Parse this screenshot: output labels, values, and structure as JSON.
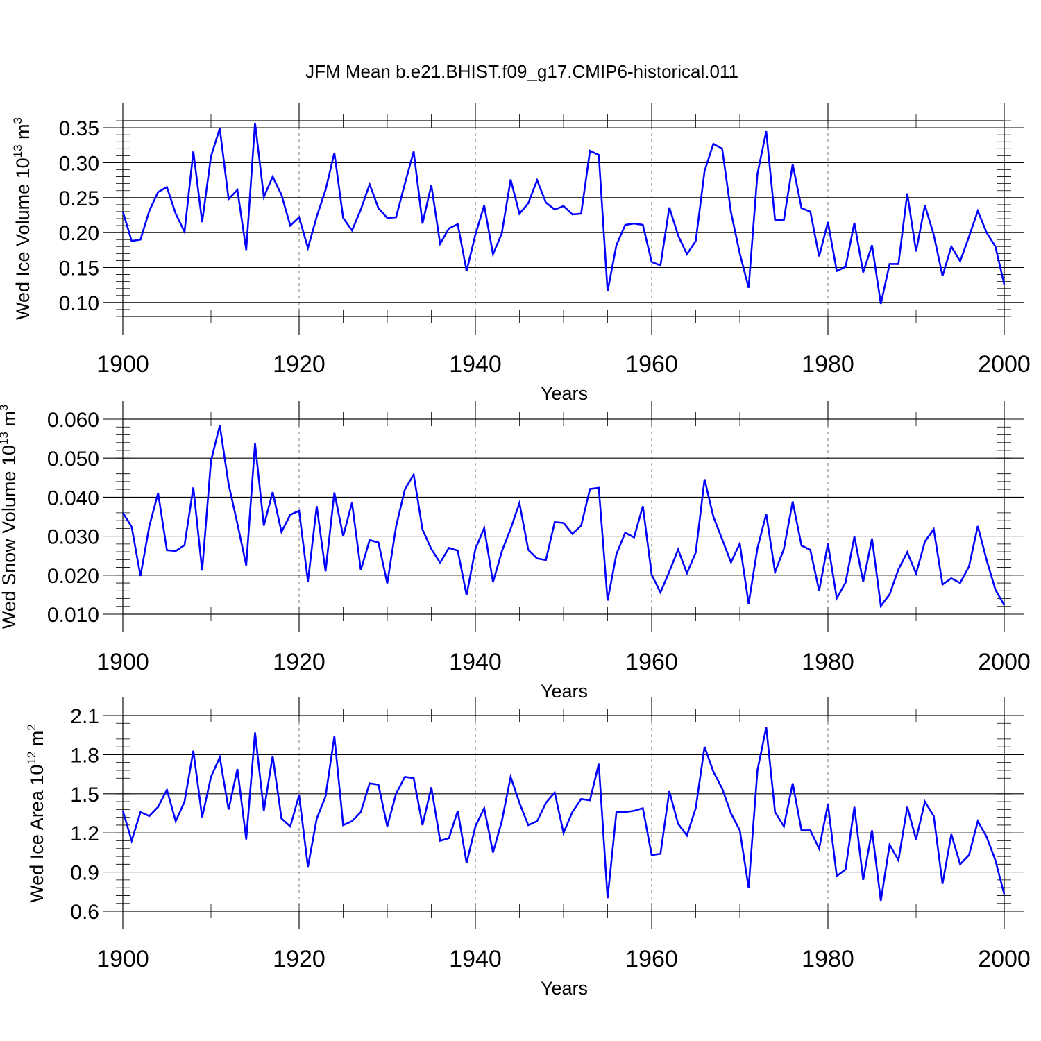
{
  "title": "JFM Mean b.e21.BHIST.f09_g17.CMIP6-historical.011",
  "line_color": "#0000ff",
  "chart_data": [
    {
      "type": "line",
      "ylabel": "Wed Ice Volume 10",
      "ylabel_exp": "13",
      "ylabel_unit": " m",
      "ylabel_unit_exp": "3",
      "xlabel": "Years",
      "xlim": [
        1900,
        2000
      ],
      "ylim": [
        0.08,
        0.36
      ],
      "yticks": [
        0.1,
        0.15,
        0.2,
        0.25,
        0.3,
        0.35
      ],
      "ytick_labels": [
        "0.10",
        "0.15",
        "0.20",
        "0.25",
        "0.30",
        "0.35"
      ],
      "yminor_step": 0.01,
      "xticks": [
        1900,
        1920,
        1940,
        1960,
        1980,
        2000
      ],
      "xtick_labels": [
        "1900",
        "1920",
        "1940",
        "1960",
        "1980",
        "2000"
      ],
      "x_start": 1900,
      "series": [
        {
          "name": "Wed Ice Volume",
          "values": [
            0.23,
            0.188,
            0.19,
            0.231,
            0.258,
            0.265,
            0.227,
            0.201,
            0.316,
            0.215,
            0.309,
            0.349,
            0.248,
            0.261,
            0.175,
            0.357,
            0.251,
            0.28,
            0.254,
            0.21,
            0.222,
            0.178,
            0.223,
            0.261,
            0.314,
            0.221,
            0.203,
            0.233,
            0.269,
            0.235,
            0.221,
            0.222,
            0.27,
            0.316,
            0.213,
            0.268,
            0.184,
            0.206,
            0.212,
            0.145,
            0.197,
            0.239,
            0.169,
            0.199,
            0.276,
            0.227,
            0.242,
            0.275,
            0.243,
            0.233,
            0.238,
            0.226,
            0.227,
            0.317,
            0.311,
            0.116,
            0.182,
            0.211,
            0.213,
            0.211,
            0.158,
            0.153,
            0.236,
            0.196,
            0.169,
            0.188,
            0.288,
            0.327,
            0.32,
            0.229,
            0.17,
            0.121,
            0.284,
            0.345,
            0.218,
            0.218,
            0.298,
            0.235,
            0.23,
            0.166,
            0.215,
            0.145,
            0.151,
            0.214,
            0.143,
            0.182,
            0.098,
            0.155,
            0.155,
            0.256,
            0.173,
            0.239,
            0.197,
            0.138,
            0.18,
            0.159,
            0.194,
            0.231,
            0.2,
            0.18,
            0.126
          ]
        }
      ]
    },
    {
      "type": "line",
      "ylabel": "Wed Snow Volume 10",
      "ylabel_exp": "13",
      "ylabel_unit": " m",
      "ylabel_unit_exp": "3",
      "xlabel": "Years",
      "xlim": [
        1900,
        2000
      ],
      "ylim": [
        0.01,
        0.06
      ],
      "yticks": [
        0.01,
        0.02,
        0.03,
        0.04,
        0.05,
        0.06
      ],
      "ytick_labels": [
        "0.010",
        "0.020",
        "0.030",
        "0.040",
        "0.050",
        "0.060"
      ],
      "yminor_step": 0.002,
      "xticks": [
        1900,
        1920,
        1940,
        1960,
        1980,
        2000
      ],
      "xtick_labels": [
        "1900",
        "1920",
        "1940",
        "1960",
        "1980",
        "2000"
      ],
      "x_start": 1900,
      "series": [
        {
          "name": "Wed Snow Volume",
          "values": [
            0.036,
            0.0324,
            0.0198,
            0.0325,
            0.0411,
            0.0264,
            0.0262,
            0.0277,
            0.0425,
            0.0212,
            0.0493,
            0.0584,
            0.0433,
            0.0332,
            0.0225,
            0.0538,
            0.0327,
            0.0413,
            0.0311,
            0.0355,
            0.0365,
            0.0184,
            0.0377,
            0.021,
            0.0412,
            0.03,
            0.0386,
            0.0213,
            0.029,
            0.0284,
            0.0179,
            0.0325,
            0.042,
            0.0458,
            0.0317,
            0.0267,
            0.0232,
            0.027,
            0.0263,
            0.0149,
            0.0267,
            0.0321,
            0.0182,
            0.0261,
            0.0319,
            0.0385,
            0.0265,
            0.0243,
            0.0239,
            0.0336,
            0.0334,
            0.0306,
            0.0327,
            0.0421,
            0.0424,
            0.0135,
            0.0254,
            0.0309,
            0.0297,
            0.0377,
            0.0201,
            0.0156,
            0.0209,
            0.0266,
            0.0205,
            0.0258,
            0.0446,
            0.035,
            0.0292,
            0.0233,
            0.0281,
            0.0127,
            0.0269,
            0.0357,
            0.0208,
            0.0267,
            0.0389,
            0.0276,
            0.0265,
            0.016,
            0.0281,
            0.0141,
            0.0181,
            0.0299,
            0.0183,
            0.0294,
            0.0121,
            0.0151,
            0.0215,
            0.0259,
            0.0204,
            0.0286,
            0.0318,
            0.0176,
            0.0192,
            0.018,
            0.0222,
            0.0326,
            0.0239,
            0.0163,
            0.0123
          ]
        }
      ]
    },
    {
      "type": "line",
      "ylabel": "Wed Ice Area 10",
      "ylabel_exp": "12",
      "ylabel_unit": " m",
      "ylabel_unit_exp": "2",
      "xlabel": "Years",
      "xlim": [
        1900,
        2000
      ],
      "ylim": [
        0.6,
        2.1
      ],
      "yticks": [
        0.6,
        0.9,
        1.2,
        1.5,
        1.8,
        2.1
      ],
      "ytick_labels": [
        "0.6",
        "0.9",
        "1.2",
        "1.5",
        "1.8",
        "2.1"
      ],
      "yminor_step": 0.06,
      "xticks": [
        1900,
        1920,
        1940,
        1960,
        1980,
        2000
      ],
      "xtick_labels": [
        "1900",
        "1920",
        "1940",
        "1960",
        "1980",
        "2000"
      ],
      "x_start": 1900,
      "series": [
        {
          "name": "Wed Ice Area",
          "values": [
            1.37,
            1.14,
            1.36,
            1.33,
            1.4,
            1.53,
            1.29,
            1.44,
            1.83,
            1.32,
            1.63,
            1.78,
            1.38,
            1.69,
            1.15,
            1.97,
            1.37,
            1.79,
            1.31,
            1.25,
            1.49,
            0.94,
            1.31,
            1.48,
            1.94,
            1.26,
            1.29,
            1.36,
            1.58,
            1.57,
            1.25,
            1.5,
            1.63,
            1.62,
            1.26,
            1.55,
            1.14,
            1.16,
            1.37,
            0.97,
            1.25,
            1.39,
            1.05,
            1.29,
            1.63,
            1.43,
            1.26,
            1.29,
            1.43,
            1.51,
            1.2,
            1.36,
            1.46,
            1.45,
            1.73,
            0.7,
            1.36,
            1.36,
            1.37,
            1.39,
            1.03,
            1.04,
            1.52,
            1.27,
            1.18,
            1.39,
            1.86,
            1.67,
            1.54,
            1.35,
            1.22,
            0.78,
            1.68,
            2.01,
            1.36,
            1.25,
            1.58,
            1.22,
            1.22,
            1.08,
            1.42,
            0.87,
            0.92,
            1.4,
            0.84,
            1.22,
            0.68,
            1.11,
            0.99,
            1.4,
            1.15,
            1.44,
            1.33,
            0.81,
            1.19,
            0.96,
            1.03,
            1.29,
            1.17,
            0.99,
            0.73
          ]
        }
      ]
    }
  ]
}
